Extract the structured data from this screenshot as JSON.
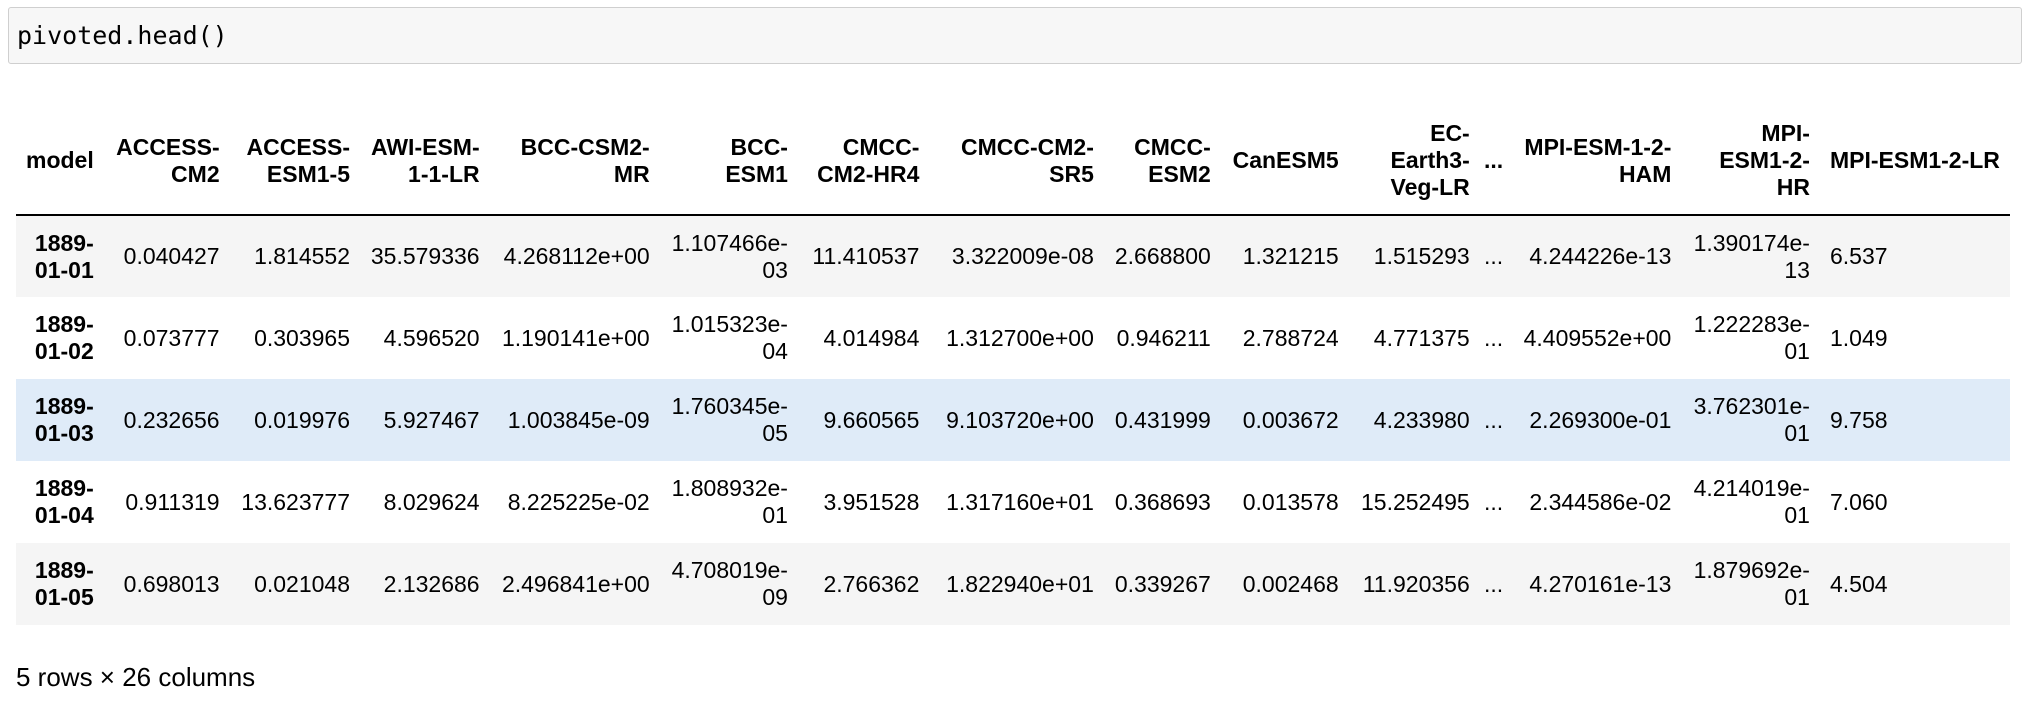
{
  "code_cell": {
    "source": "pivoted.head()"
  },
  "dataframe": {
    "index_name": "model",
    "columns": [
      "ACCESS-CM2",
      "ACCESS-ESM1-5",
      "AWI-ESM-1-1-LR",
      "BCC-CSM2-MR",
      "BCC-ESM1",
      "CMCC-CM2-HR4",
      "CMCC-CM2-SR5",
      "CMCC-ESM2",
      "CanESM5",
      "EC-Earth3-Veg-LR",
      "...",
      "MPI-ESM-1-2-HAM",
      "MPI-ESM1-2-HR",
      "MPI-ESM1-2-LR"
    ],
    "rows": [
      {
        "index": "1889-01-01",
        "values": [
          "0.040427",
          "1.814552",
          "35.579336",
          "4.268112e+00",
          "1.107466e-03",
          "11.410537",
          "3.322009e-08",
          "2.668800",
          "1.321215",
          "1.515293",
          "...",
          "4.244226e-13",
          "1.390174e-13",
          "6.537"
        ]
      },
      {
        "index": "1889-01-02",
        "values": [
          "0.073777",
          "0.303965",
          "4.596520",
          "1.190141e+00",
          "1.015323e-04",
          "4.014984",
          "1.312700e+00",
          "0.946211",
          "2.788724",
          "4.771375",
          "...",
          "4.409552e+00",
          "1.222283e-01",
          "1.049"
        ]
      },
      {
        "index": "1889-01-03",
        "values": [
          "0.232656",
          "0.019976",
          "5.927467",
          "1.003845e-09",
          "1.760345e-05",
          "9.660565",
          "9.103720e+00",
          "0.431999",
          "0.003672",
          "4.233980",
          "...",
          "2.269300e-01",
          "3.762301e-01",
          "9.758"
        ]
      },
      {
        "index": "1889-01-04",
        "values": [
          "0.911319",
          "13.623777",
          "8.029624",
          "8.225225e-02",
          "1.808932e-01",
          "3.951528",
          "1.317160e+01",
          "0.368693",
          "0.013578",
          "15.252495",
          "...",
          "2.344586e-02",
          "4.214019e-01",
          "7.060"
        ]
      },
      {
        "index": "1889-01-05",
        "values": [
          "0.698013",
          "0.021048",
          "2.132686",
          "2.496841e+00",
          "4.708019e-09",
          "2.766362",
          "1.822940e+01",
          "0.339267",
          "0.002468",
          "11.920356",
          "...",
          "4.270161e-13",
          "1.879692e-01",
          "4.504"
        ]
      }
    ],
    "hovered_row": 2
  },
  "shape_info": "5 rows × 26 columns"
}
